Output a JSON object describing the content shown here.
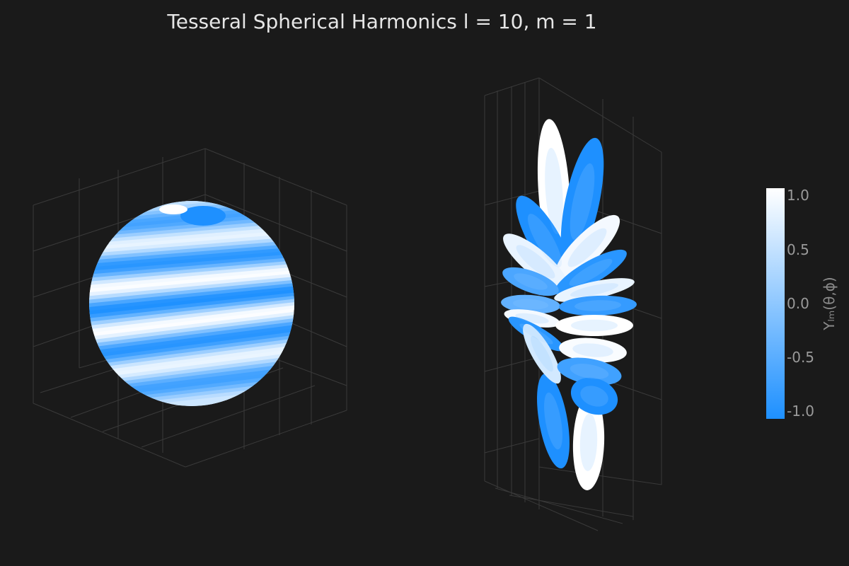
{
  "chart_data": {
    "type": "surface3d",
    "title": "Tesseral Spherical Harmonics l = 10, m = 1",
    "l": 10,
    "m": 1,
    "panels": [
      {
        "name": "sphere",
        "representation": "sphere surface colored by Y_lm"
      },
      {
        "name": "radial",
        "representation": "radius = |Y_lm| lobes"
      }
    ],
    "colorscale": {
      "low_color": "#1e90ff",
      "high_color": "#ffffff",
      "cmin": -1.0,
      "cmax": 1.0,
      "title": "Yₗₘ(θ,ϕ)",
      "ticks": [
        1.0,
        0.5,
        0.0,
        -0.5,
        -1.0
      ],
      "tick_labels": [
        "1.0",
        "0.5",
        "0.0",
        "-0.5",
        "-1.0"
      ]
    },
    "grid": true,
    "background": "#1a1a1a",
    "grid_color": "#3a3a3a"
  }
}
